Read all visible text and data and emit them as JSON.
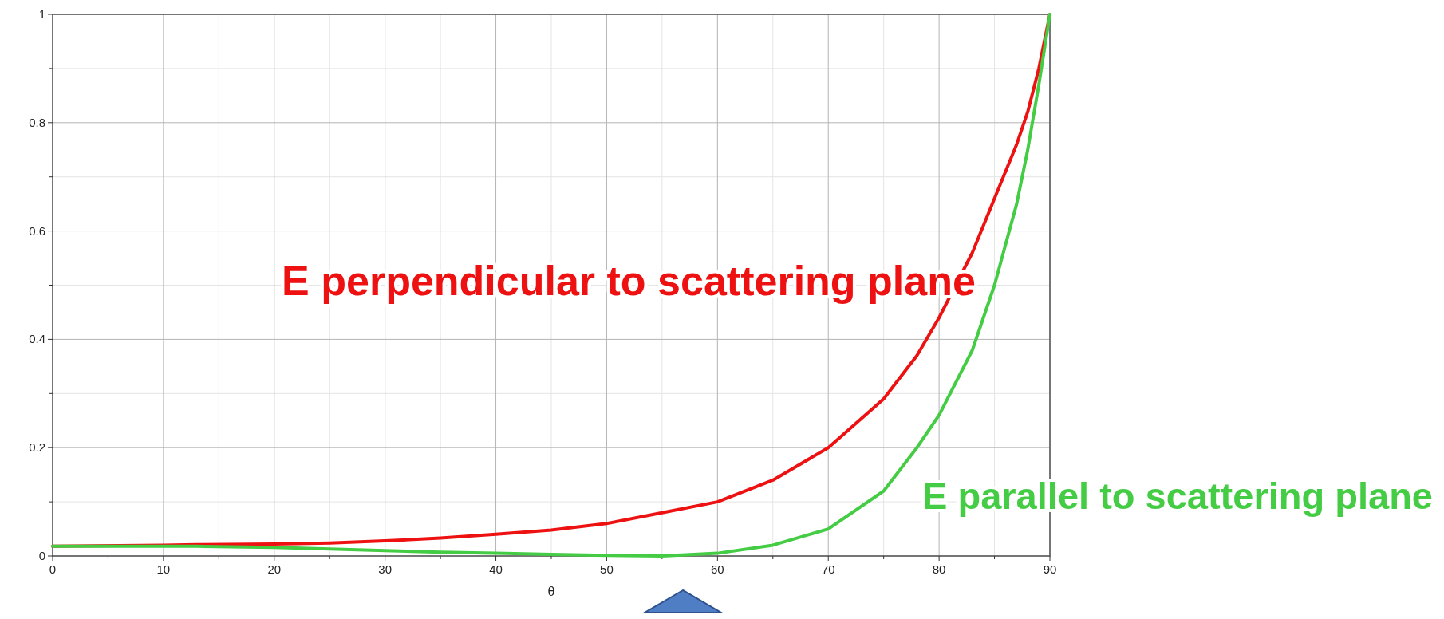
{
  "chart_data": {
    "type": "line",
    "xlabel": "θ",
    "x": [
      0,
      10,
      13,
      20,
      25,
      30,
      35,
      40,
      45,
      50,
      55,
      60,
      65,
      70,
      75,
      78,
      80,
      83,
      85,
      87,
      88,
      89,
      90
    ],
    "series": [
      {
        "name": "E perpendicular to scattering plane",
        "color": "#ee1111",
        "values": [
          0.018,
          0.02,
          0.021,
          0.022,
          0.024,
          0.028,
          0.033,
          0.04,
          0.048,
          0.06,
          0.08,
          0.1,
          0.14,
          0.2,
          0.29,
          0.37,
          0.44,
          0.56,
          0.66,
          0.76,
          0.82,
          0.9,
          1
        ]
      },
      {
        "name": "E parallel to scattering plane",
        "color": "#44cc44",
        "values": [
          0.018,
          0.018,
          0.018,
          0.016,
          0.013,
          0.01,
          0.007,
          0.005,
          0.003,
          0.001,
          0,
          0.005,
          0.02,
          0.05,
          0.12,
          0.2,
          0.26,
          0.38,
          0.5,
          0.65,
          0.75,
          0.87,
          1
        ]
      }
    ],
    "xlim": [
      0,
      90
    ],
    "xticks": [
      0,
      10,
      20,
      30,
      40,
      50,
      60,
      70,
      80,
      90
    ],
    "ylim": [
      0,
      1
    ],
    "yticks": [
      0,
      0.2,
      0.4,
      0.6,
      0.8,
      1
    ],
    "grid": true
  }
}
